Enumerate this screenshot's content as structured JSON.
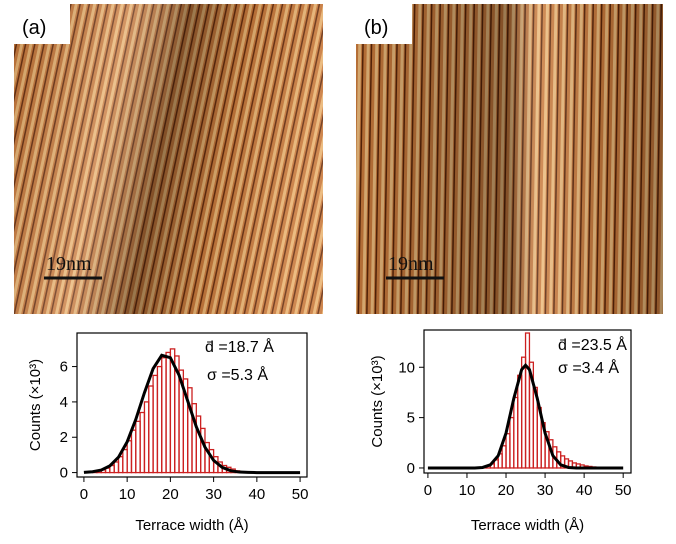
{
  "panels": [
    {
      "label": "(a)",
      "scale_bar": "19nm"
    },
    {
      "label": "(b)",
      "scale_bar": "19nm"
    }
  ],
  "chart_data": [
    {
      "type": "histogram",
      "xlabel": "Terrace width (Å)",
      "ylabel": "Counts (×10³)",
      "bins": [
        2,
        3,
        4,
        5,
        6,
        7,
        8,
        9,
        10,
        11,
        12,
        13,
        14,
        15,
        16,
        17,
        18,
        19,
        20,
        21,
        22,
        23,
        24,
        25,
        26,
        27,
        28,
        29,
        30,
        31,
        32,
        33,
        34,
        35,
        36
      ],
      "counts": [
        0.05,
        0.1,
        0.15,
        0.25,
        0.4,
        0.6,
        0.9,
        1.3,
        1.8,
        2.4,
        2.9,
        3.4,
        4.0,
        4.9,
        5.5,
        6.0,
        6.5,
        6.8,
        7.0,
        6.6,
        5.8,
        5.3,
        4.8,
        3.9,
        3.2,
        2.5,
        1.7,
        1.3,
        0.9,
        0.6,
        0.4,
        0.3,
        0.2,
        0.1
      ],
      "color": "#cc2020",
      "fit": {
        "x": [
          0,
          2,
          4,
          6,
          8,
          10,
          12,
          14,
          16,
          18,
          20,
          22,
          24,
          26,
          28,
          30,
          32,
          34,
          36,
          38,
          40,
          44,
          50
        ],
        "values": [
          0.01,
          0.05,
          0.14,
          0.38,
          0.87,
          1.74,
          3.01,
          4.52,
          5.88,
          6.64,
          6.5,
          5.52,
          4.06,
          2.59,
          1.44,
          0.69,
          0.29,
          0.1,
          0.03,
          0.01,
          0,
          0,
          0
        ],
        "color": "#000000"
      },
      "annotations": [
        "d̄ =18.7 Å",
        "σ =5.3 Å"
      ],
      "xlim": [
        -1.6,
        51.6
      ],
      "ylim": [
        -0.25,
        7.9
      ],
      "xticks": [
        0,
        10,
        20,
        30,
        40,
        50
      ],
      "yticks": [
        0,
        2,
        4,
        6
      ]
    },
    {
      "type": "histogram",
      "xlabel": "Terrace width (Å)",
      "ylabel": "Counts (×10³)",
      "bins": [
        14,
        15,
        16,
        17,
        18,
        19,
        20,
        21,
        22,
        23,
        24,
        25,
        26,
        27,
        28,
        29,
        30,
        31,
        32,
        33,
        34,
        35,
        36,
        37,
        38,
        39,
        40,
        41,
        42,
        43,
        44
      ],
      "counts": [
        0.1,
        0.2,
        0.4,
        0.8,
        1.4,
        2.2,
        3.4,
        5.0,
        7.0,
        9.2,
        11.0,
        13.4,
        10.5,
        8.0,
        6.0,
        4.5,
        3.6,
        2.8,
        2.1,
        1.6,
        1.2,
        0.9,
        0.7,
        0.5,
        0.4,
        0.3,
        0.2,
        0.15,
        0.1,
        0.05
      ],
      "color": "#cc2020",
      "fit": {
        "x": [
          0,
          12,
          14,
          16,
          18,
          20,
          22,
          24,
          25,
          26,
          28,
          30,
          32,
          34,
          36,
          38,
          50
        ],
        "values": [
          0,
          0,
          0.05,
          0.31,
          1.22,
          3.46,
          6.91,
          9.77,
          10.2,
          9.77,
          6.91,
          3.46,
          1.22,
          0.31,
          0.05,
          0,
          0
        ],
        "color": "#000000"
      },
      "annotations": [
        "d̄ =23.5 Å",
        "σ =3.4 Å"
      ],
      "xlim": [
        -1,
        52
      ],
      "ylim": [
        -0.5,
        13.7
      ],
      "xticks": [
        0,
        10,
        20,
        30,
        40,
        50
      ],
      "yticks": [
        0,
        5,
        10
      ]
    }
  ]
}
